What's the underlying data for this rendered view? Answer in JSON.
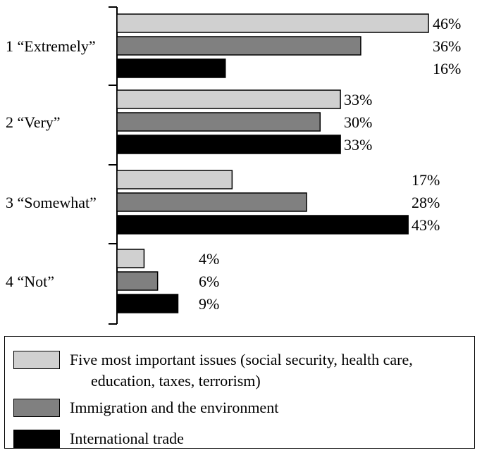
{
  "chart_data": {
    "type": "bar",
    "orientation": "horizontal",
    "categories": [
      "1 “Extremely”",
      "2 “Very”",
      "3 “Somewhat”",
      "4 “Not”"
    ],
    "series": [
      {
        "name": "Five most important issues (social security, health care, education, taxes, terrorism)",
        "color": "#d0d0d0",
        "values": [
          46,
          33,
          17,
          4
        ]
      },
      {
        "name": "Immigration and the environment",
        "color": "#808080",
        "values": [
          36,
          30,
          28,
          6
        ]
      },
      {
        "name": "International trade",
        "color": "#000000",
        "values": [
          16,
          33,
          43,
          9
        ]
      }
    ],
    "value_labels": [
      [
        "46%",
        "33%",
        "17%",
        "4%"
      ],
      [
        "36%",
        "30%",
        "28%",
        "6%"
      ],
      [
        "16%",
        "33%",
        "43%",
        "9%"
      ]
    ],
    "xlim": [
      0,
      46
    ],
    "grid": false,
    "legend_position": "bottom"
  },
  "legend": {
    "line1": "Five most important issues (social security, health care,",
    "line2": "education, taxes, terrorism)",
    "item2": "Immigration and the environment",
    "item3": "International trade"
  }
}
